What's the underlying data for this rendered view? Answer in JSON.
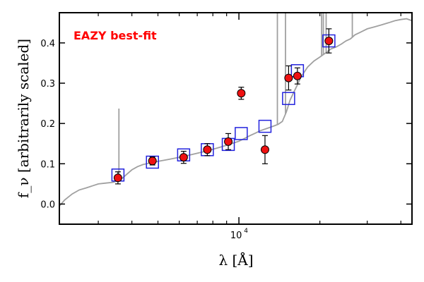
{
  "chart_data": {
    "type": "scatter",
    "title": "",
    "xlabel": "λ [Å]",
    "ylabel": "f_ν [arbitrarily scaled]",
    "xscale": "log",
    "xlim": [
      2150,
      44000
    ],
    "ylim": [
      -0.05,
      0.475
    ],
    "yticks": [
      "0.0",
      "0.1",
      "0.2",
      "0.3",
      "0.4"
    ],
    "xticks": [
      {
        "base": "10",
        "exp": "4"
      }
    ],
    "grid": false,
    "annotation": "EAZY best-fit",
    "colors": {
      "observed": "#ee1111",
      "model": "#2222dd",
      "sed": "#a0a0a0",
      "annotation": "#ff0000"
    },
    "series": [
      {
        "kind": "observed",
        "x": [
          3550,
          4770,
          6230,
          7630,
          9130,
          10200,
          12500,
          15300,
          16500,
          21600
        ],
        "y": [
          0.065,
          0.107,
          0.116,
          0.135,
          0.155,
          0.275,
          0.135,
          0.313,
          0.318,
          0.405
        ],
        "yerr": [
          0.015,
          0.01,
          0.015,
          0.015,
          0.02,
          0.015,
          0.035,
          0.03,
          0.02,
          0.03
        ]
      },
      {
        "kind": "model",
        "x": [
          3550,
          4770,
          6230,
          7630,
          9130,
          10200,
          12500,
          15300,
          16500,
          21600
        ],
        "y": [
          0.072,
          0.104,
          0.122,
          0.135,
          0.148,
          0.175,
          0.193,
          0.262,
          0.331,
          0.405
        ]
      },
      {
        "kind": "sed",
        "x": [
          2150,
          2250,
          2400,
          2550,
          2700,
          2850,
          3000,
          3200,
          3400,
          3550,
          3700,
          3800,
          4000,
          4200,
          4400,
          4600,
          4800,
          5000,
          5500,
          6000,
          6500,
          7000,
          7500,
          8000,
          8500,
          9000,
          9500,
          10000,
          10500,
          11000,
          11500,
          12000,
          12500,
          13000,
          13500,
          14000,
          14500,
          15000,
          15500,
          16000,
          16500,
          17000,
          18000,
          19000,
          20000,
          21000,
          22000,
          23000,
          24000,
          25000,
          26000,
          27000,
          28000,
          29000,
          30000,
          32000,
          34000,
          36000,
          38000,
          40000,
          42000,
          44000
        ],
        "y": [
          -0.005,
          0.01,
          0.025,
          0.035,
          0.04,
          0.045,
          0.05,
          0.052,
          0.054,
          0.058,
          0.065,
          0.072,
          0.085,
          0.093,
          0.098,
          0.101,
          0.104,
          0.106,
          0.111,
          0.116,
          0.121,
          0.126,
          0.131,
          0.136,
          0.141,
          0.146,
          0.151,
          0.156,
          0.163,
          0.17,
          0.176,
          0.182,
          0.186,
          0.19,
          0.194,
          0.198,
          0.205,
          0.228,
          0.258,
          0.278,
          0.296,
          0.315,
          0.34,
          0.355,
          0.365,
          0.375,
          0.385,
          0.39,
          0.397,
          0.405,
          0.41,
          0.42,
          0.425,
          0.43,
          0.435,
          0.44,
          0.445,
          0.45,
          0.455,
          0.458,
          0.46,
          0.455
        ],
        "spikes": [
          {
            "x": 3580,
            "y": 0.237
          },
          {
            "x": 13900,
            "y": 0.475
          },
          {
            "x": 14900,
            "y": 0.475
          },
          {
            "x": 20300,
            "y": 0.475
          },
          {
            "x": 20600,
            "y": 0.475
          },
          {
            "x": 21100,
            "y": 0.475
          },
          {
            "x": 26400,
            "y": 0.475
          }
        ]
      }
    ]
  }
}
